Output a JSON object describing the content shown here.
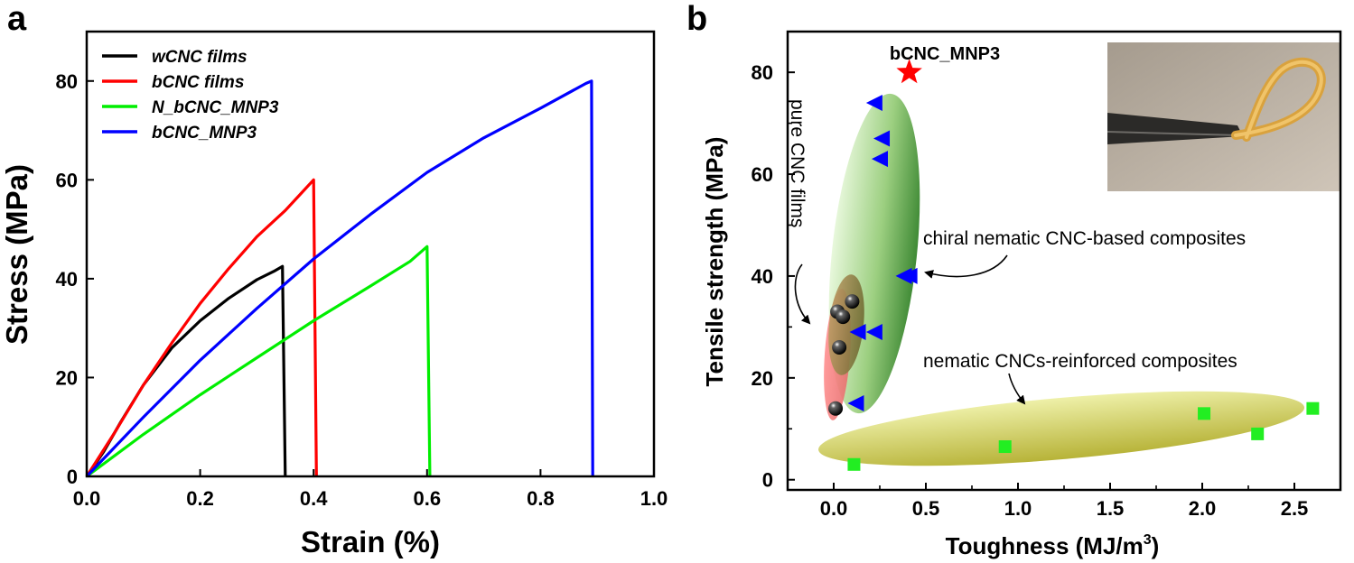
{
  "chart_data": [
    {
      "panel": "a",
      "type": "line",
      "xlabel": "Strain (%)",
      "ylabel": "Stress (MPa)",
      "xlim": [
        0.0,
        1.0
      ],
      "ylim": [
        0,
        90
      ],
      "xticks": [
        "0.0",
        "0.2",
        "0.4",
        "0.6",
        "0.8",
        "1.0"
      ],
      "yticks": [
        "0",
        "20",
        "40",
        "60",
        "80"
      ],
      "legend_position": "top-left",
      "series": [
        {
          "name": "wCNC films",
          "color": "#000000",
          "x": [
            0.0,
            0.03,
            0.06,
            0.1,
            0.15,
            0.2,
            0.25,
            0.3,
            0.33,
            0.345,
            0.35
          ],
          "y": [
            0,
            5,
            11,
            18.5,
            26,
            31.5,
            36,
            39.8,
            41.5,
            42.5,
            0
          ]
        },
        {
          "name": "bCNC films",
          "color": "#ff0000",
          "x": [
            0.0,
            0.05,
            0.1,
            0.15,
            0.2,
            0.25,
            0.3,
            0.35,
            0.38,
            0.4,
            0.405
          ],
          "y": [
            0,
            9,
            18.5,
            27,
            35,
            42,
            48.5,
            53.8,
            57.5,
            60,
            0
          ]
        },
        {
          "name": "N_bCNC_MNP3",
          "color": "#00ee00",
          "x": [
            0.0,
            0.1,
            0.2,
            0.3,
            0.4,
            0.5,
            0.57,
            0.6,
            0.605
          ],
          "y": [
            0,
            8.5,
            16.5,
            24,
            31.5,
            38.5,
            43.5,
            46.5,
            0
          ]
        },
        {
          "name": "bCNC_MNP3",
          "color": "#0000ff",
          "x": [
            0.0,
            0.1,
            0.2,
            0.3,
            0.4,
            0.5,
            0.6,
            0.7,
            0.8,
            0.88,
            0.89,
            0.892
          ],
          "y": [
            0,
            12,
            23.5,
            34,
            44,
            53,
            61.5,
            68.5,
            74.5,
            79.5,
            80,
            0
          ]
        }
      ]
    },
    {
      "panel": "b",
      "type": "scatter",
      "xlabel": "Toughness (MJ/m",
      "xlabel_sup": "3",
      "xlabel_end": ")",
      "ylabel": "Tensile strength (MPa)",
      "xlim": [
        -0.25,
        2.75
      ],
      "ylim": [
        -2,
        88
      ],
      "xticks": [
        "0.0",
        "0.5",
        "1.0",
        "1.5",
        "2.0",
        "2.5"
      ],
      "yticks": [
        "0",
        "20",
        "40",
        "60",
        "80"
      ],
      "series": [
        {
          "name": "pure CNC films",
          "marker": "sphere",
          "color": "#000000",
          "x": [
            0.02,
            0.1,
            0.05,
            0.03,
            0.01
          ],
          "y": [
            33,
            35,
            32,
            26,
            14
          ]
        },
        {
          "name": "chiral nematic CNC-based composites",
          "marker": "triangle-left",
          "color": "#0000ff",
          "x": [
            0.22,
            0.26,
            0.25,
            0.38,
            0.41,
            0.13,
            0.22,
            0.12
          ],
          "y": [
            74,
            67,
            63,
            40,
            40,
            29,
            29,
            15
          ]
        },
        {
          "name": "nematic CNCs-reinforced composites",
          "marker": "square",
          "color": "#22ee22",
          "x": [
            0.11,
            0.93,
            2.01,
            2.3,
            2.6
          ],
          "y": [
            3,
            6.5,
            13,
            9,
            14
          ]
        },
        {
          "name": "bCNC_MNP3",
          "marker": "star",
          "color": "#ff0000",
          "x": [
            0.41
          ],
          "y": [
            80
          ]
        }
      ],
      "annotations": {
        "star_label": "bCNC_MNP3",
        "pure": "pure CNC films",
        "chiral": "chiral nematic CNC-based composites",
        "nematic": "nematic CNCs-reinforced composites"
      }
    }
  ]
}
